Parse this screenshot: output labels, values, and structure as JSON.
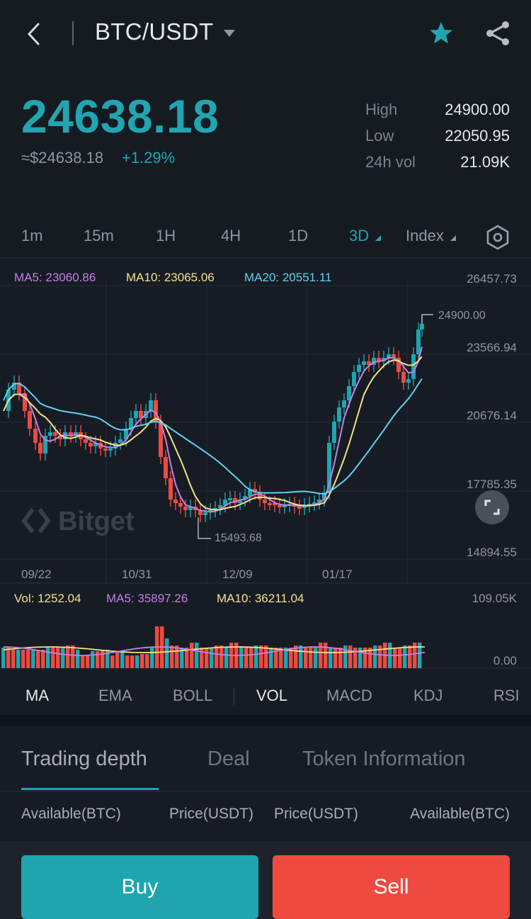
{
  "header": {
    "pair": "BTC/USDT",
    "icons": [
      "back-arrow-icon",
      "dropdown-caret-icon",
      "star-icon",
      "share-icon"
    ],
    "star_color": "#21a5b1"
  },
  "ticker": {
    "last_price": "24638.18",
    "usd_value": "≈$24638.18",
    "change": "+1.29%",
    "high_label": "High",
    "high": "24900.00",
    "low_label": "Low",
    "low": "22050.95",
    "vol_label": "24h vol",
    "vol": "21.09K"
  },
  "timeframes": {
    "items": [
      "1m",
      "15m",
      "1H",
      "4H",
      "1D",
      "3D"
    ],
    "active": "3D",
    "index_label": "Index"
  },
  "chart": {
    "ma5": "MA5: 23060.86",
    "ma10": "MA10: 23065.06",
    "ma20": "MA20: 20551.11",
    "price_axis": [
      "26457.73",
      "23566.94",
      "20676.14",
      "17785.35",
      "14894.55"
    ],
    "high_marker": "24900.00",
    "low_marker": "15493.68",
    "dates": [
      "09/22",
      "10/31",
      "12/09",
      "01/17"
    ],
    "vol": "Vol: 1252.04",
    "vol_ma5": "MA5: 35897.26",
    "vol_ma10": "MA10: 36211.04",
    "vol_axis": [
      "109.05K",
      "0.00"
    ],
    "watermark": "Bitget",
    "colors": {
      "up": "#1ea5b0",
      "down": "#ef4a40",
      "ma5": "#c77ee6",
      "ma10": "#f2e28a",
      "ma20": "#5fd0f0"
    }
  },
  "indicators": {
    "items": [
      "MA",
      "EMA",
      "BOLL",
      "VOL",
      "MACD",
      "KDJ",
      "RSI"
    ],
    "active": [
      "MA",
      "VOL"
    ]
  },
  "tabs": {
    "items": [
      "Trading depth",
      "Deal",
      "Token Information"
    ],
    "active": "Trading depth"
  },
  "depth_header": [
    "Available(BTC)",
    "Price(USDT)",
    "Price(USDT)",
    "Available(BTC)"
  ],
  "actions": {
    "buy": "Buy",
    "sell": "Sell"
  }
}
